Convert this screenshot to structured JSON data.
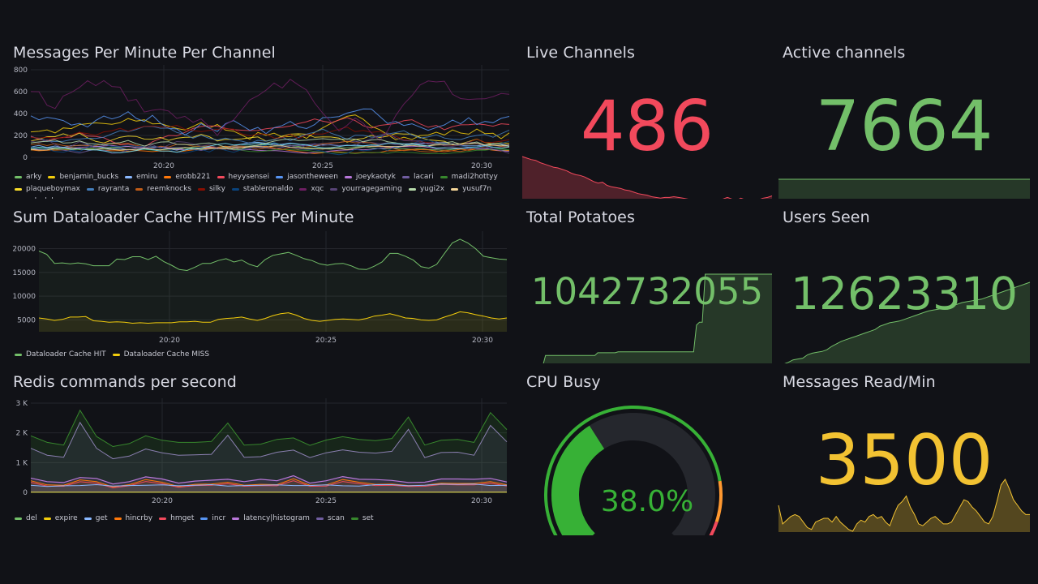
{
  "colors": {
    "background": "#111217",
    "red": "#f2495c",
    "green": "#73bf69",
    "yellow": "#f2cc0c",
    "orange": "#ff9830",
    "gauge_green": "#37b136",
    "gauge_track": "#25272d"
  },
  "panels": {
    "messages_per_minute": {
      "title": "Messages Per Minute Per Channel",
      "y_ticks": [
        "800",
        "600",
        "400",
        "200",
        "0"
      ],
      "x_ticks": [
        "20:20",
        "20:25",
        "20:30"
      ],
      "legend": [
        {
          "name": "arky",
          "color": "#73bf69"
        },
        {
          "name": "benjamin_bucks",
          "color": "#f2cc0c"
        },
        {
          "name": "emiru",
          "color": "#8ab8ff"
        },
        {
          "name": "erobb221",
          "color": "#ff780a"
        },
        {
          "name": "heyysensei",
          "color": "#f2495c"
        },
        {
          "name": "jasontheween",
          "color": "#5794f2"
        },
        {
          "name": "joeykaotyk",
          "color": "#b877d9"
        },
        {
          "name": "lacari",
          "color": "#705da0"
        },
        {
          "name": "madi2hottyy",
          "color": "#37872d"
        },
        {
          "name": "plaqueboymax",
          "color": "#fade2a"
        },
        {
          "name": "rayranta",
          "color": "#447ebc"
        },
        {
          "name": "reemknocks",
          "color": "#c15c17"
        },
        {
          "name": "silky",
          "color": "#890f02"
        },
        {
          "name": "stableronaldo",
          "color": "#0a437c"
        },
        {
          "name": "xqc",
          "color": "#6d1f62"
        },
        {
          "name": "yourragegaming",
          "color": "#584477"
        },
        {
          "name": "yugi2x",
          "color": "#b7dbab"
        },
        {
          "name": "yusuf7n",
          "color": "#f4d598"
        },
        {
          "name": "yxlsalah",
          "color": "#70dbed"
        }
      ]
    },
    "dataloader": {
      "title": "Sum Dataloader Cache HIT/MISS Per Minute",
      "y_ticks": [
        "20000",
        "15000",
        "10000",
        "5000"
      ],
      "x_ticks": [
        "20:20",
        "20:25",
        "20:30"
      ],
      "legend": [
        {
          "name": "Dataloader Cache HIT",
          "color": "#73bf69"
        },
        {
          "name": "Dataloader Cache MISS",
          "color": "#f2cc0c"
        }
      ]
    },
    "redis": {
      "title": "Redis commands per second",
      "y_ticks": [
        "3 K",
        "2 K",
        "1 K",
        "0"
      ],
      "x_ticks": [
        "20:20",
        "20:25",
        "20:30"
      ],
      "legend": [
        {
          "name": "del",
          "color": "#73bf69"
        },
        {
          "name": "expire",
          "color": "#f2cc0c"
        },
        {
          "name": "get",
          "color": "#8ab8ff"
        },
        {
          "name": "hincrby",
          "color": "#ff780a"
        },
        {
          "name": "hmget",
          "color": "#f2495c"
        },
        {
          "name": "incr",
          "color": "#5794f2"
        },
        {
          "name": "latency|histogram",
          "color": "#b877d9"
        },
        {
          "name": "scan",
          "color": "#705da0"
        },
        {
          "name": "set",
          "color": "#37872d"
        }
      ]
    },
    "live_channels": {
      "title": "Live Channels",
      "value": "486"
    },
    "active_channels": {
      "title": "Active channels",
      "value": "7664"
    },
    "total_potatoes": {
      "title": "Total Potatoes",
      "value": "1042732055"
    },
    "users_seen": {
      "title": "Users Seen",
      "value": "12623310"
    },
    "cpu_busy": {
      "title": "CPU Busy",
      "value": "38.0%",
      "percent": 38.0
    },
    "messages_read": {
      "title": "Messages Read/Min",
      "value": "3500"
    }
  }
}
